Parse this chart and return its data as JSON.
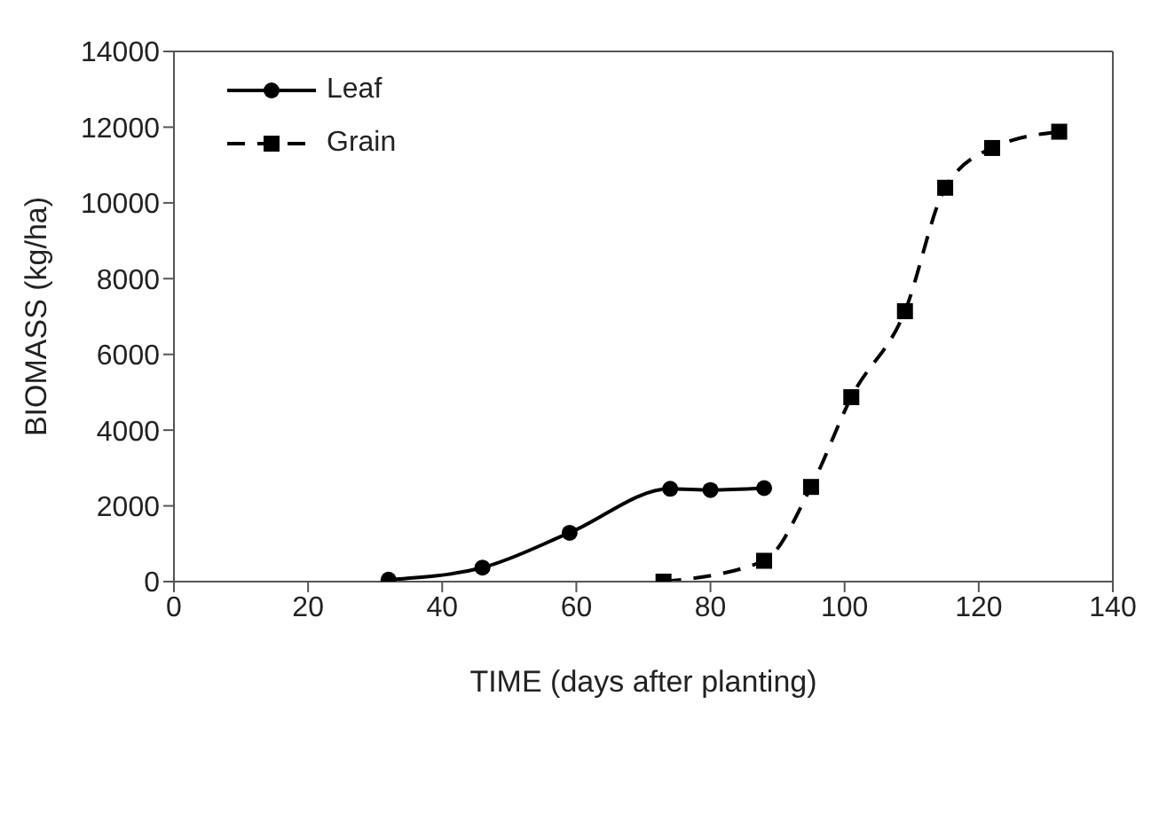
{
  "chart_data": {
    "type": "line",
    "xlabel": "TIME (days after planting)",
    "ylabel": "BIOMASS (kg/ha)",
    "xlim": [
      0,
      140
    ],
    "xticks": [
      0,
      20,
      40,
      60,
      80,
      100,
      120,
      140
    ],
    "ylim": [
      0,
      14000
    ],
    "yticks": [
      0,
      2000,
      4000,
      6000,
      8000,
      10000,
      12000,
      14000
    ],
    "legend": "top left",
    "series": [
      {
        "name": "Leaf",
        "color": "#000000",
        "marker": "circle",
        "line_style": "solid",
        "x": [
          32,
          46,
          59,
          74,
          80,
          88
        ],
        "values": [
          50,
          370,
          1290,
          2450,
          2420,
          2470
        ]
      },
      {
        "name": "Grain",
        "color": "#000000",
        "marker": "square",
        "line_style": "dashed",
        "x": [
          73,
          88,
          95,
          101,
          109,
          115,
          122,
          132
        ],
        "values": [
          0,
          550,
          2500,
          4870,
          7140,
          10400,
          11450,
          11880
        ]
      }
    ]
  }
}
